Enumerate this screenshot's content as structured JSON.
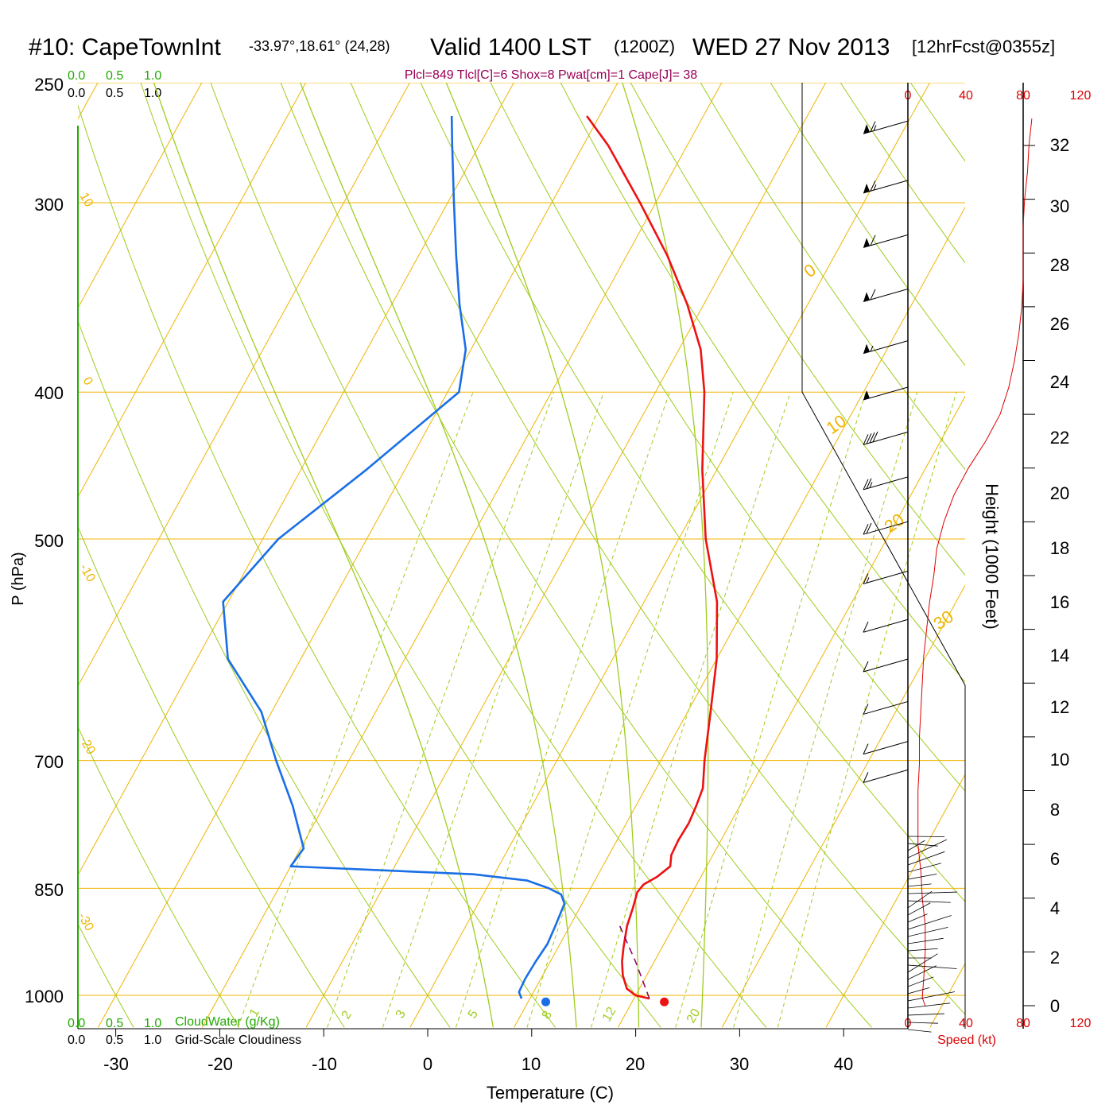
{
  "header": {
    "station": "#10: CapeTownInt",
    "coords": "-33.97°,18.61° (24,28)",
    "valid": "Valid 1400 LST",
    "zulu": "(1200Z)",
    "date": "WED 27 Nov 2013",
    "forecast": "[12hrFcst@0355z]",
    "indices": "Plcl=849 Tlcl[C]=6 Shox=8 Pwat[cm]=1 Cape[J]= 38"
  },
  "colors": {
    "isotherm": "#f0b400",
    "dry_adiabat": "#9fcc1f",
    "mixing_ratio": "#9fcc1f",
    "temperature": "#ee1111",
    "dewpoint": "#1a6fe6",
    "parcel": "#880066",
    "speed": "#dd0000",
    "cloud_green": "#22aa00",
    "title_purple": "#990055"
  },
  "chart_data": {
    "type": "skew-t",
    "title": "Valid 1400 LST (1200Z) WED 27 Nov 2013",
    "xlabel": "Temperature (C)",
    "ylabel": "P (hPa)",
    "xlim": [
      -34,
      46
    ],
    "pressure_ticks": [
      250,
      300,
      400,
      500,
      700,
      850,
      1000
    ],
    "pressure_tick_labels": [
      "250",
      "300",
      "400",
      "500",
      "700",
      "850",
      "1000"
    ],
    "temperature_ticks": [
      -30,
      -20,
      -10,
      0,
      10,
      20,
      30,
      40
    ],
    "temperature_tick_labels": [
      "-30",
      "-20",
      "-10",
      "0",
      "10",
      "20",
      "30",
      "40"
    ],
    "isotherm_labels": [
      "10",
      "0",
      "-10",
      "-20",
      "-30",
      "0",
      "10",
      "20",
      "30"
    ],
    "mixing_ratio_labels": [
      "1",
      "2",
      "3",
      "5",
      "8",
      "12",
      "20"
    ],
    "cloud_scale": {
      "top_green": [
        "0.0",
        "0.5",
        "1.0"
      ],
      "top_black": [
        "0.0",
        "0.5",
        "1.0"
      ],
      "bottom_green": [
        "0.0",
        "0.5",
        "1.0"
      ],
      "bottom_black": [
        "0.0",
        "0.5",
        "1.0"
      ],
      "cloudwater_label": "CloudWater (g/Kg)",
      "cloudiness_label": "Grid-Scale Cloudiness"
    },
    "temperature_series": {
      "name": "Temperature",
      "points": [
        [
          1005,
          21.5
        ],
        [
          1000,
          20.0
        ],
        [
          990,
          18.8
        ],
        [
          970,
          17.7
        ],
        [
          950,
          16.9
        ],
        [
          930,
          16.3
        ],
        [
          900,
          15.5
        ],
        [
          875,
          15.1
        ],
        [
          855,
          14.7
        ],
        [
          845,
          14.9
        ],
        [
          835,
          15.8
        ],
        [
          822,
          16.5
        ],
        [
          808,
          16.0
        ],
        [
          790,
          15.9
        ],
        [
          770,
          16.0
        ],
        [
          750,
          15.8
        ],
        [
          730,
          15.5
        ],
        [
          700,
          14.2
        ],
        [
          650,
          12.2
        ],
        [
          600,
          10.0
        ],
        [
          550,
          7.0
        ],
        [
          500,
          2.6
        ],
        [
          450,
          -1.4
        ],
        [
          400,
          -5.3
        ],
        [
          375,
          -7.9
        ],
        [
          350,
          -11.6
        ],
        [
          325,
          -16.1
        ],
        [
          300,
          -21.5
        ],
        [
          275,
          -27.6
        ],
        [
          263,
          -31.2
        ]
      ]
    },
    "dewpoint_series": {
      "name": "Dewpoint",
      "points": [
        [
          1005,
          9.2
        ],
        [
          995,
          8.6
        ],
        [
          975,
          8.5
        ],
        [
          950,
          8.6
        ],
        [
          925,
          8.8
        ],
        [
          900,
          8.6
        ],
        [
          870,
          8.3
        ],
        [
          858,
          7.5
        ],
        [
          850,
          6.0
        ],
        [
          840,
          3.5
        ],
        [
          832,
          -2.0
        ],
        [
          822,
          -20.0
        ],
        [
          800,
          -19.7
        ],
        [
          780,
          -21.0
        ],
        [
          750,
          -23.0
        ],
        [
          700,
          -27.0
        ],
        [
          650,
          -31.0
        ],
        [
          600,
          -37.0
        ],
        [
          550,
          -40.5
        ],
        [
          500,
          -38.5
        ],
        [
          450,
          -33.7
        ],
        [
          400,
          -28.9
        ],
        [
          375,
          -30.5
        ],
        [
          350,
          -33.5
        ],
        [
          325,
          -36.4
        ],
        [
          300,
          -39.4
        ],
        [
          275,
          -42.6
        ],
        [
          263,
          -44.2
        ]
      ]
    },
    "parcel_series": {
      "name": "Parcel",
      "points": [
        [
          1005,
          21.5
        ],
        [
          950,
          18.2
        ],
        [
          900,
          14.8
        ]
      ]
    },
    "surface_markers": [
      {
        "name": "surface-dewpoint",
        "t": 11.7,
        "p": 1010
      },
      {
        "name": "surface-temperature",
        "t": 23.1,
        "p": 1010
      }
    ],
    "height_axis": {
      "label": "Height (1000 Feet)",
      "ticks": [
        0,
        2,
        4,
        6,
        8,
        10,
        12,
        14,
        16,
        18,
        20,
        22,
        24,
        26,
        28,
        30,
        32
      ],
      "tick_labels": [
        "0",
        "2",
        "4",
        "6",
        "8",
        "10",
        "12",
        "14",
        "16",
        "18",
        "20",
        "22",
        "24",
        "26",
        "28",
        "30",
        "32"
      ]
    },
    "speed_axis": {
      "label": "Speed (kt)",
      "ticks": [
        0,
        40,
        80,
        120
      ],
      "tick_labels": [
        "0",
        "40",
        "80",
        "120"
      ]
    },
    "wind_speed_profile": {
      "units": "kt",
      "points": [
        [
          0.0,
          12
        ],
        [
          0.3,
          10
        ],
        [
          1.0,
          11
        ],
        [
          2.0,
          12
        ],
        [
          3.0,
          12
        ],
        [
          4.0,
          10
        ],
        [
          5.0,
          9
        ],
        [
          6.0,
          7
        ],
        [
          7.0,
          7
        ],
        [
          8.0,
          7
        ],
        [
          9.0,
          8
        ],
        [
          10.0,
          8
        ],
        [
          11.0,
          9
        ],
        [
          12.0,
          10
        ],
        [
          13.0,
          11
        ],
        [
          14.0,
          13
        ],
        [
          15.0,
          15
        ],
        [
          16.0,
          18
        ],
        [
          17.0,
          20
        ],
        [
          18.0,
          25
        ],
        [
          19.0,
          32
        ],
        [
          20.0,
          42
        ],
        [
          21.0,
          54
        ],
        [
          22.0,
          64
        ],
        [
          23.0,
          70
        ],
        [
          24.0,
          74
        ],
        [
          25.0,
          77
        ],
        [
          26.0,
          79
        ],
        [
          27.0,
          80
        ],
        [
          28.0,
          80
        ],
        [
          29.0,
          80
        ],
        [
          30.0,
          81
        ],
        [
          31.0,
          83
        ],
        [
          32.0,
          84
        ],
        [
          33.0,
          86
        ]
      ]
    },
    "wind_barbs": [
      {
        "p": 265,
        "speed": 65
      },
      {
        "p": 290,
        "speed": 65
      },
      {
        "p": 315,
        "speed": 60
      },
      {
        "p": 342,
        "speed": 60
      },
      {
        "p": 370,
        "speed": 55
      },
      {
        "p": 397,
        "speed": 50
      },
      {
        "p": 425,
        "speed": 40
      },
      {
        "p": 455,
        "speed": 25
      },
      {
        "p": 487,
        "speed": 20
      },
      {
        "p": 525,
        "speed": 15
      },
      {
        "p": 565,
        "speed": 12
      },
      {
        "p": 600,
        "speed": 10
      },
      {
        "p": 640,
        "speed": 10
      },
      {
        "p": 680,
        "speed": 10
      },
      {
        "p": 710,
        "speed": 10
      }
    ]
  }
}
